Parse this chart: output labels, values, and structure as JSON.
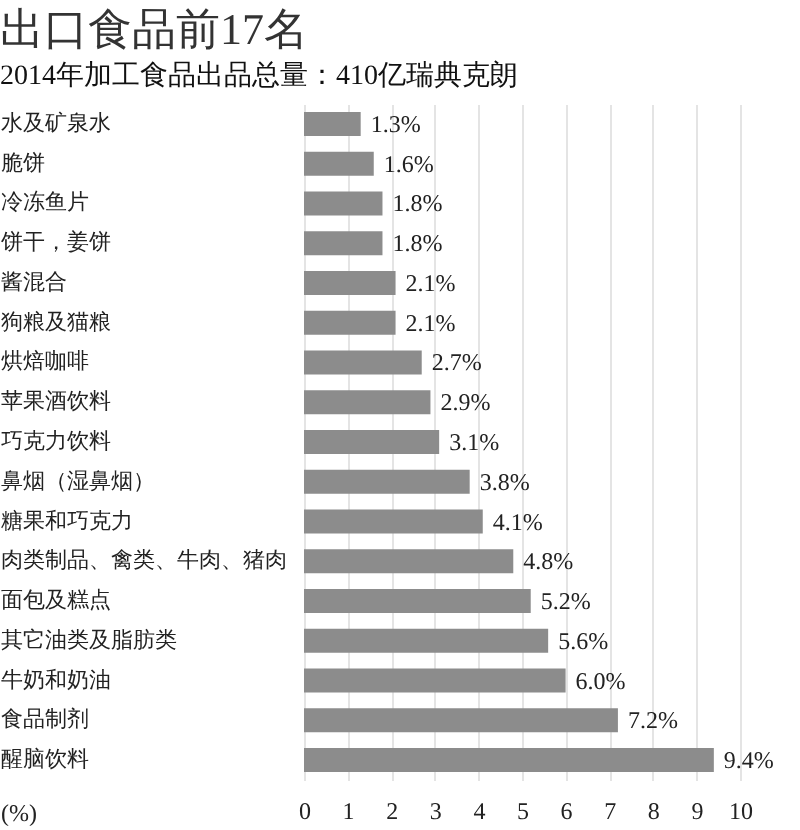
{
  "chart_data": {
    "type": "bar",
    "orientation": "horizontal",
    "title": "出口食品前17名",
    "subtitle": "2014年加工食品出品总量：410亿瑞典克朗",
    "xlabel": "(%)",
    "categories": [
      "水及矿泉水",
      "脆饼",
      "冷冻鱼片",
      "饼干，姜饼",
      "酱混合",
      "狗粮及猫粮",
      "烘焙咖啡",
      "苹果酒饮料",
      "巧克力饮料",
      "鼻烟（湿鼻烟）",
      "糖果和巧克力",
      "肉类制品、禽类、牛肉、猪肉",
      "面包及糕点",
      "其它油类及脂肪类",
      "牛奶和奶油",
      "食品制剂",
      "醒脑饮料"
    ],
    "values": [
      1.3,
      1.6,
      1.8,
      1.8,
      2.1,
      2.1,
      2.7,
      2.9,
      3.1,
      3.8,
      4.1,
      4.8,
      5.2,
      5.6,
      6.0,
      7.2,
      9.4
    ],
    "value_labels": [
      "1.3%",
      "1.6%",
      "1.8%",
      "1.8%",
      "2.1%",
      "2.1%",
      "2.7%",
      "2.9%",
      "3.1%",
      "3.8%",
      "4.1%",
      "4.8%",
      "5.2%",
      "5.6%",
      "6.0%",
      "7.2%",
      "9.4%"
    ],
    "color": "#8c8c8c",
    "xlim": [
      0,
      10
    ],
    "xticks": [
      0,
      1,
      2,
      3,
      4,
      5,
      6,
      7,
      8,
      9,
      10
    ],
    "grid": "x"
  }
}
